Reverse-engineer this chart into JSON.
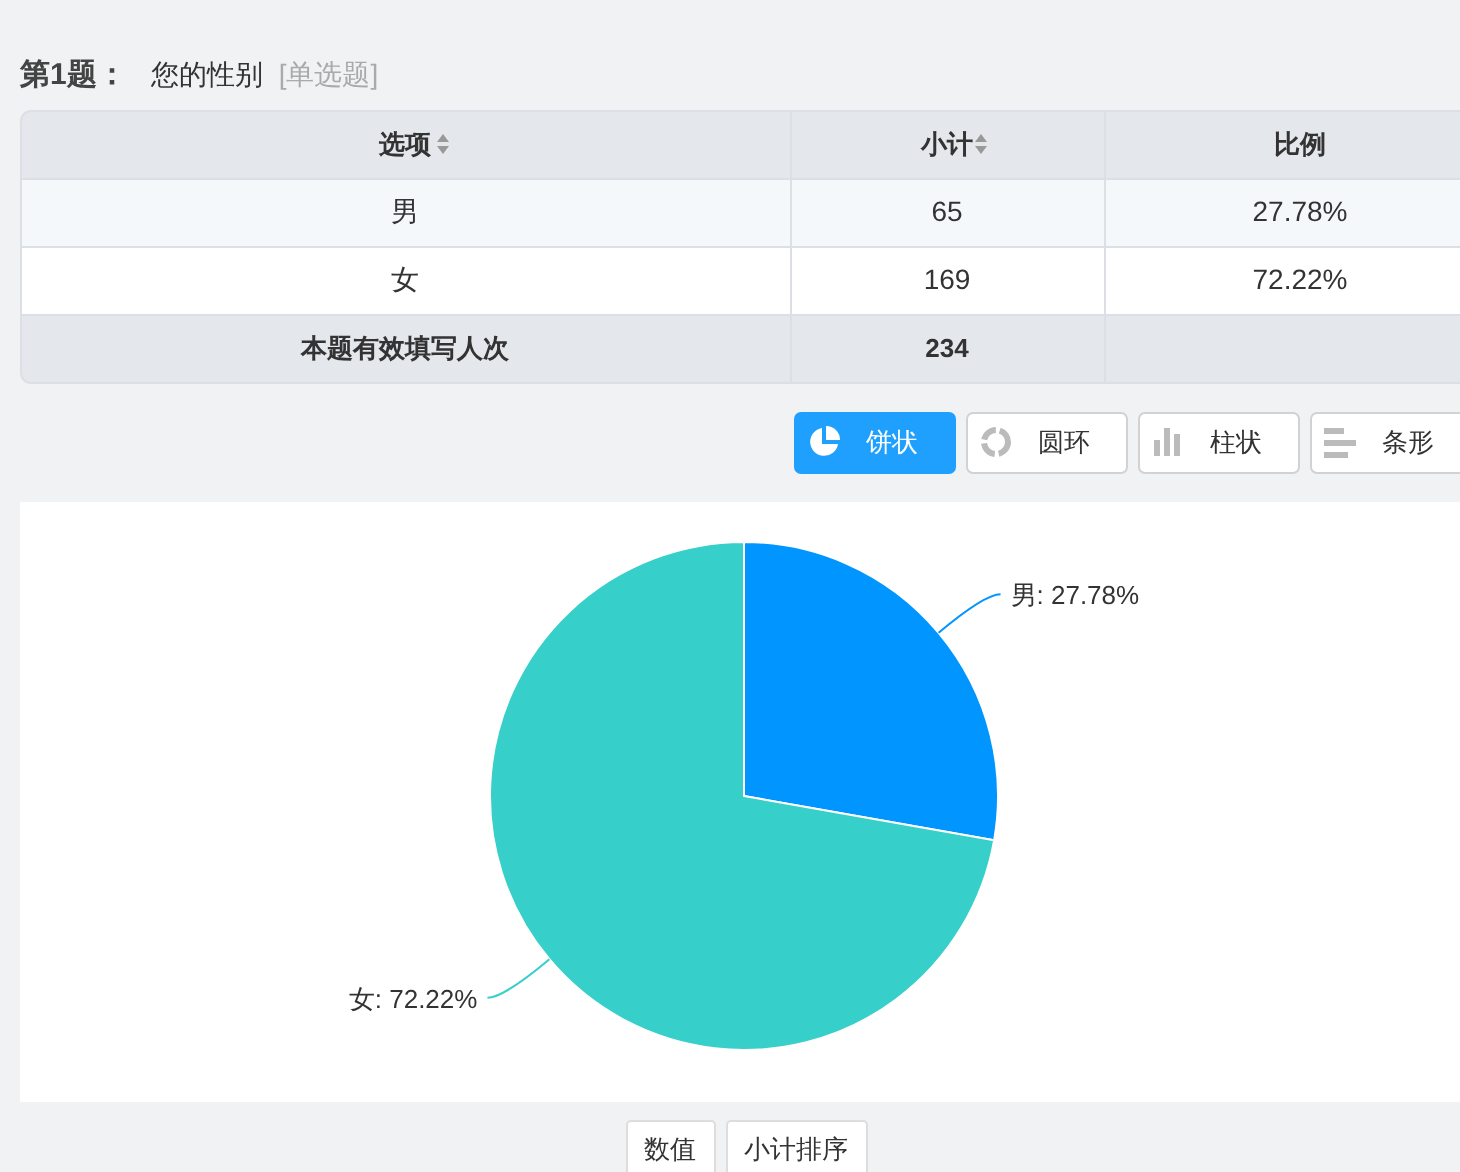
{
  "chart_data": [
    {
      "type": "other",
      "title": "第1题：",
      "subtitle": "您的性别",
      "annotations": [
        "[单选题]",
        "选项",
        "小计",
        "比例",
        "男",
        "65",
        "27.78%",
        "女",
        "169",
        "72.22%",
        "本题有效填写人次",
        "234"
      ]
    },
    {
      "type": "pie",
      "categories": [
        "男",
        "女"
      ],
      "values": [
        27.78,
        72.22
      ],
      "value_labels": [
        "27.78%",
        "72.22%"
      ],
      "colors": [
        "#0095ff",
        "#36cfc9"
      ],
      "annotations": [
        "饼状",
        "圆环",
        "柱状",
        "条形",
        "数值",
        "小计排序"
      ]
    }
  ]
}
